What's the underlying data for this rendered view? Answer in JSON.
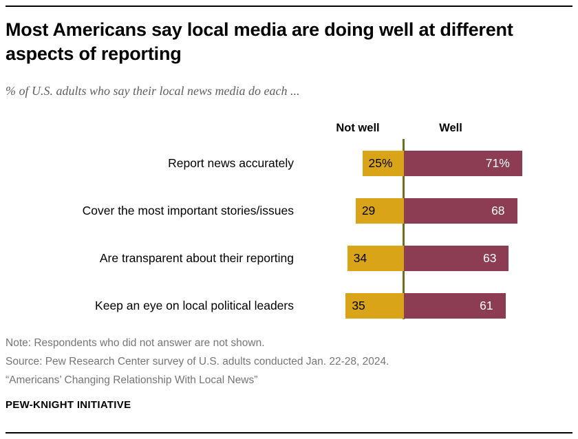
{
  "title": "Most Americans say local media are doing well at different aspects of reporting",
  "subtitle": "% of U.S. adults who say their local news media do each ...",
  "chart_data": {
    "type": "bar",
    "variant": "diverging-horizontal",
    "title": "Most Americans say local media are doing well at different aspects of reporting",
    "subtitle": "% of U.S. adults who say their local news media do each ...",
    "categories": [
      "Report news accurately",
      "Cover the most important stories/issues",
      "Are transparent about their reporting",
      "Keep an eye on local political leaders"
    ],
    "series": [
      {
        "name": "Not well",
        "color": "#d9a417",
        "label_color": "#000000",
        "values": [
          25,
          29,
          34,
          35
        ],
        "labels": [
          "25%",
          "29",
          "34",
          "35"
        ]
      },
      {
        "name": "Well",
        "color": "#8c3c53",
        "label_color": "#ffffff",
        "values": [
          71,
          68,
          63,
          61
        ],
        "labels": [
          "71%",
          "68",
          "63",
          "61"
        ]
      }
    ],
    "column_headers": {
      "not_well": "Not well",
      "well": "Well"
    },
    "axis_color": "#6f6d21",
    "xlim": [
      0,
      100
    ],
    "grid": false,
    "legend_position": "column-headers-above-bars"
  },
  "notes": [
    "Note: Respondents who did not answer are not shown.",
    "Source: Pew Research Center survey of U.S. adults conducted Jan. 22-28, 2024.",
    "“Americans’ Changing Relationship With Local News”"
  ],
  "footer": "PEW-KNIGHT INITIATIVE"
}
